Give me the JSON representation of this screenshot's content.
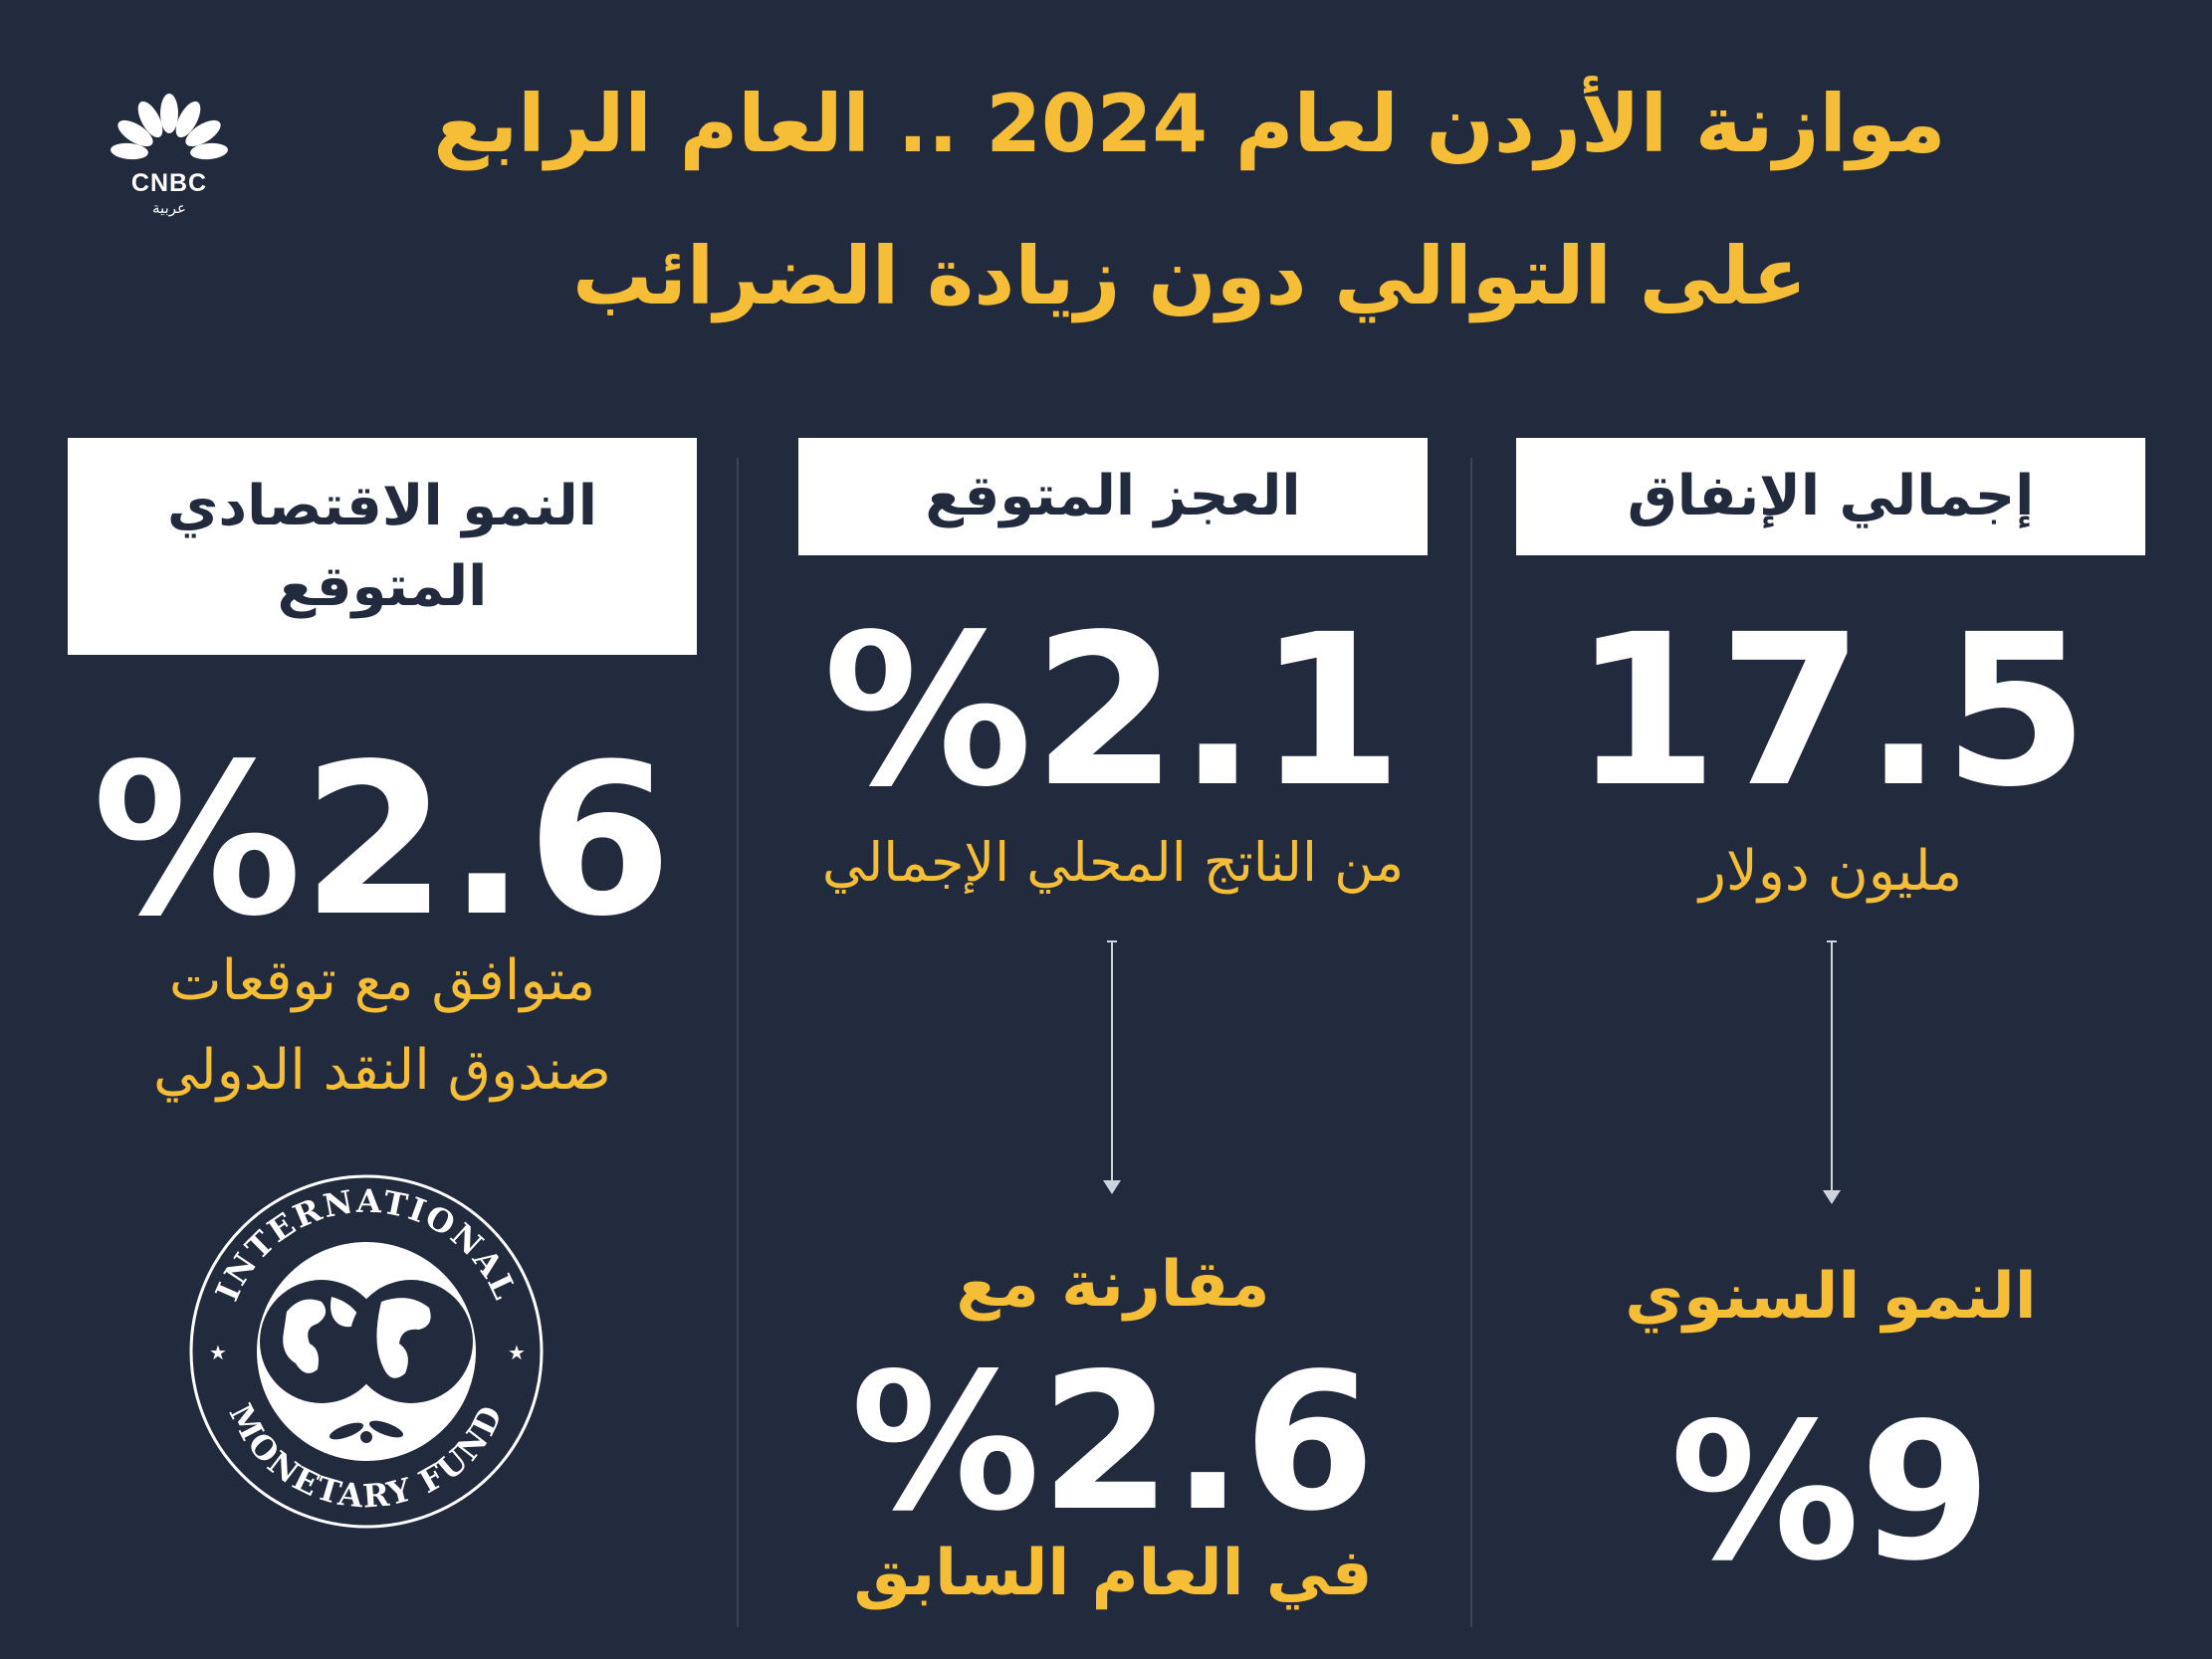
{
  "logo": {
    "brand": "CNBC",
    "sub_brand": "عربية",
    "peacock_colors": [
      "#ffffff"
    ]
  },
  "title": {
    "line1": "موازنة الأردن لعام 2024 .. العام الرابع",
    "line2": "على التوالي دون زيادة الضرائب"
  },
  "columns": {
    "spending": {
      "label": "إجمالي الإنفاق",
      "value": "17.5",
      "unit": "مليون دولار",
      "growth_label": "النمو السنوي",
      "growth_value": "%9"
    },
    "deficit": {
      "label": "العجز المتوقع",
      "value": "%2.1",
      "unit": "من الناتج المحلي الإجمالي",
      "compare_label": "مقارنة مع",
      "compare_value": "%2.6",
      "compare_note": "في العام السابق"
    },
    "growth": {
      "label_line1": "النمو الاقتصادي",
      "label_line2": "المتوقع",
      "value": "%2.6",
      "note_line1": "متوافق مع توقعات",
      "note_line2": "صندوق النقد الدولي"
    }
  },
  "imf_seal": {
    "top_text": "INTERNATIONAL",
    "bottom_text": "MONETARY FUND"
  },
  "colors": {
    "background": "#222a3e",
    "accent": "#f6bd36",
    "text": "#ffffff"
  }
}
